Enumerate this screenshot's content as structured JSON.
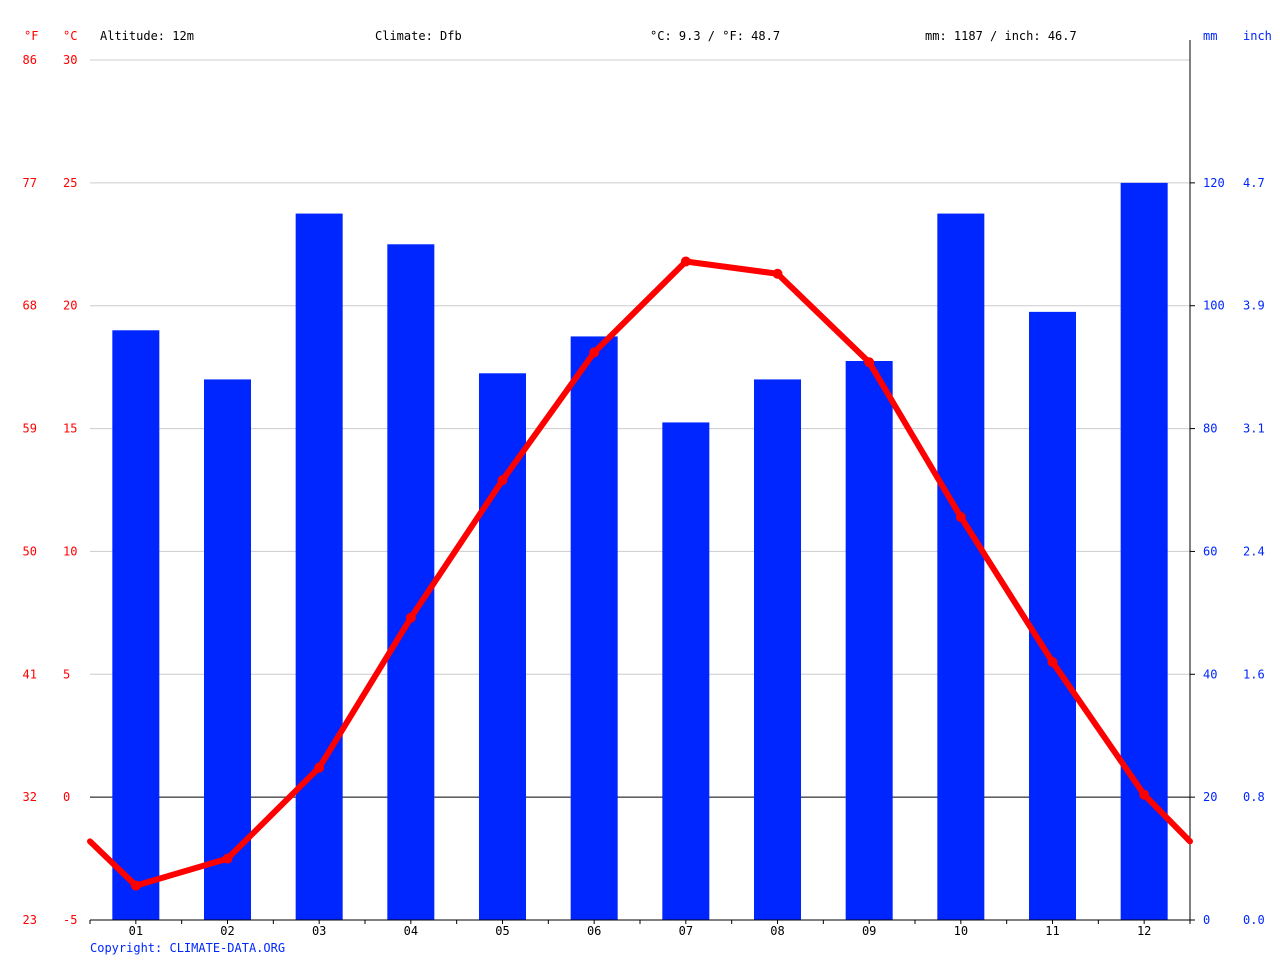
{
  "header": {
    "f_unit": "°F",
    "c_unit": "°C",
    "altitude": "Altitude: 12m",
    "climate": "Climate: Dfb",
    "temp_avg": "°C: 9.3 / °F: 48.7",
    "precip_total": "mm: 1187 / inch: 46.7",
    "mm_unit": "mm",
    "inch_unit": "inch"
  },
  "copyright": "Copyright: CLIMATE-DATA.ORG",
  "colors": {
    "temperature": "#ff0000",
    "precipitation": "#0026ff",
    "grid": "#cccccc",
    "zero_line": "#000000"
  },
  "chart_data": {
    "type": "bar",
    "categories": [
      "01",
      "02",
      "03",
      "04",
      "05",
      "06",
      "07",
      "08",
      "09",
      "10",
      "11",
      "12"
    ],
    "series": [
      {
        "type": "bar",
        "axis": "right",
        "unit": "mm",
        "values": [
          96,
          88,
          115,
          110,
          89,
          95,
          81,
          88,
          91,
          115,
          99,
          120
        ]
      },
      {
        "type": "line",
        "axis": "left",
        "unit": "°C",
        "values": [
          -3.6,
          -2.5,
          1.2,
          7.3,
          12.9,
          18.1,
          21.8,
          21.3,
          17.7,
          11.4,
          5.5,
          0.1
        ],
        "edge_values": [
          -1.8,
          -1.8
        ]
      }
    ],
    "ylim_c": [
      -5,
      30
    ],
    "yticks_c": [
      "-5",
      "0",
      "5",
      "10",
      "15",
      "20",
      "25",
      "30"
    ],
    "yticks_f": [
      "23",
      "32",
      "41",
      "50",
      "59",
      "68",
      "77",
      "86"
    ],
    "ylim_mm": [
      0,
      140
    ],
    "yticks_mm": [
      "0",
      "20",
      "40",
      "60",
      "80",
      "100",
      "120"
    ],
    "yticks_inch": [
      "0.0",
      "0.8",
      "1.6",
      "2.4",
      "3.1",
      "3.9",
      "4.7"
    ],
    "grid": true
  }
}
